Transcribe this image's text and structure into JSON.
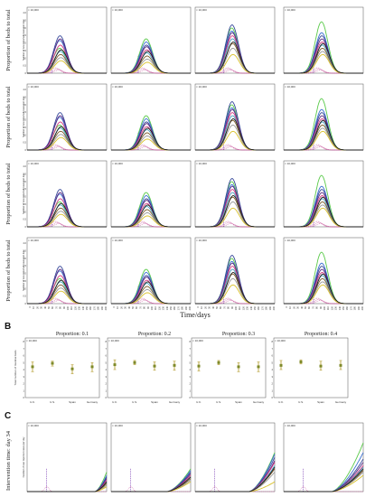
{
  "panel_labels": [
    "B",
    "C"
  ],
  "section_a": {
    "ylabel": "Proportion of beds to total",
    "inner_ylabel": "Number of new reported cases per day",
    "xlabel": "Time/days",
    "y_multiplier": "× 10,000",
    "y_ticks": [
      "0",
      "0.5",
      "1.0",
      "1.5",
      "2.0",
      "2.5",
      "3.0",
      "3.5",
      "4.0"
    ],
    "x_ticks": [
      "0",
      "10",
      "20",
      "30",
      "40",
      "50",
      "60",
      "70",
      "80",
      "90",
      "100",
      "110",
      "120",
      "130",
      "140",
      "150",
      "160",
      "170",
      "180",
      "190",
      "200"
    ]
  },
  "section_b": {
    "titles": [
      "Proportion: 0.1",
      "Proportion: 0.2",
      "Proportion: 0.3",
      "Proportion: 0.4"
    ],
    "ylabel": "Total number of medical beds",
    "y_multiplier": "× 10,000",
    "categories": [
      "U.K.",
      "U.S.",
      "Spain",
      "Germany"
    ]
  },
  "section_c": {
    "ylabel": "Intervention time: day 34",
    "inner_ylabel": "Number of new reported cases per day",
    "y_multiplier": "× 10,000"
  },
  "colors": {
    "series": [
      "#5aca4a",
      "#3a6fd0",
      "#36489a",
      "#5a2a82",
      "#d43e84",
      "#4aa3c2",
      "#7a5a28",
      "#9a9a9a",
      "#d9c12a",
      "#1d1d1d"
    ],
    "marker_vertical": "#7b3fb5",
    "marker_base": "#c03a8c",
    "errorbar": "#b8a23a",
    "errorbar_point": "#7e8a2a"
  },
  "chart_data": [
    {
      "type": "line",
      "panel": "A",
      "grid": {
        "rows": 4,
        "cols": 4
      },
      "x_range": [
        0,
        200
      ],
      "y_range": [
        0,
        4
      ],
      "peak_x_by_column": [
        82,
        88,
        92,
        95
      ],
      "series_peaks_by_column": [
        [
          1.6,
          2.1,
          2.4,
          2.2,
          1.8,
          1.4,
          1.2,
          1.0,
          0.8,
          1.5
        ],
        [
          2.2,
          2.0,
          1.8,
          1.7,
          1.5,
          1.3,
          1.1,
          0.9,
          0.7,
          1.4
        ],
        [
          2.9,
          2.7,
          3.1,
          2.6,
          2.4,
          2.2,
          1.9,
          1.6,
          1.2,
          2.0
        ],
        [
          3.3,
          2.6,
          2.4,
          2.2,
          2.0,
          1.8,
          1.6,
          1.4,
          1.2,
          1.9
        ]
      ]
    },
    {
      "type": "scatter",
      "panel": "B",
      "error_bars": true,
      "categories": [
        "U.K.",
        "U.S.",
        "Spain",
        "Germany"
      ],
      "groups": [
        {
          "title": "Proportion: 0.1",
          "ylim": [
            0,
            8
          ],
          "means": [
            4.4,
            4.9,
            4.1,
            4.4
          ],
          "lows": [
            3.7,
            4.5,
            3.4,
            3.7
          ],
          "highs": [
            5.1,
            5.2,
            4.7,
            5.0
          ]
        },
        {
          "title": "Proportion: 0.2",
          "ylim": [
            0,
            8
          ],
          "means": [
            4.7,
            5.0,
            4.5,
            4.6
          ],
          "lows": [
            4.0,
            4.7,
            3.9,
            3.9
          ],
          "highs": [
            5.4,
            5.3,
            5.1,
            5.2
          ]
        },
        {
          "title": "Proportion: 0.3",
          "ylim": [
            0,
            8
          ],
          "means": [
            4.5,
            5.0,
            4.4,
            4.4
          ],
          "lows": [
            3.8,
            4.7,
            3.7,
            3.7
          ],
          "highs": [
            5.1,
            5.3,
            5.0,
            5.1
          ]
        },
        {
          "title": "Proportion: 0.4",
          "ylim": [
            0,
            8
          ],
          "means": [
            4.6,
            5.1,
            4.5,
            4.6
          ],
          "lows": [
            4.0,
            4.8,
            3.9,
            4.0
          ],
          "highs": [
            5.3,
            5.4,
            5.2,
            5.3
          ]
        }
      ]
    },
    {
      "type": "line",
      "panel": "C",
      "intervention_day": 34,
      "x_range": [
        0,
        200
      ],
      "y_range": [
        0,
        4
      ],
      "rise_start_by_column": [
        170,
        140,
        135,
        120
      ],
      "series_end_by_column": [
        [
          1.2,
          1.0,
          0.9,
          0.8,
          0.7,
          0.6,
          0.5,
          0.4,
          0.3,
          0.6
        ],
        [
          1.4,
          1.3,
          1.2,
          1.1,
          1.0,
          0.9,
          0.8,
          0.7,
          0.6,
          0.9
        ],
        [
          2.4,
          2.3,
          2.1,
          1.9,
          1.8,
          1.6,
          1.4,
          1.2,
          0.6,
          1.5
        ],
        [
          3.0,
          2.4,
          2.0,
          1.8,
          1.6,
          1.5,
          1.3,
          1.2,
          1.0,
          1.4
        ]
      ]
    }
  ]
}
